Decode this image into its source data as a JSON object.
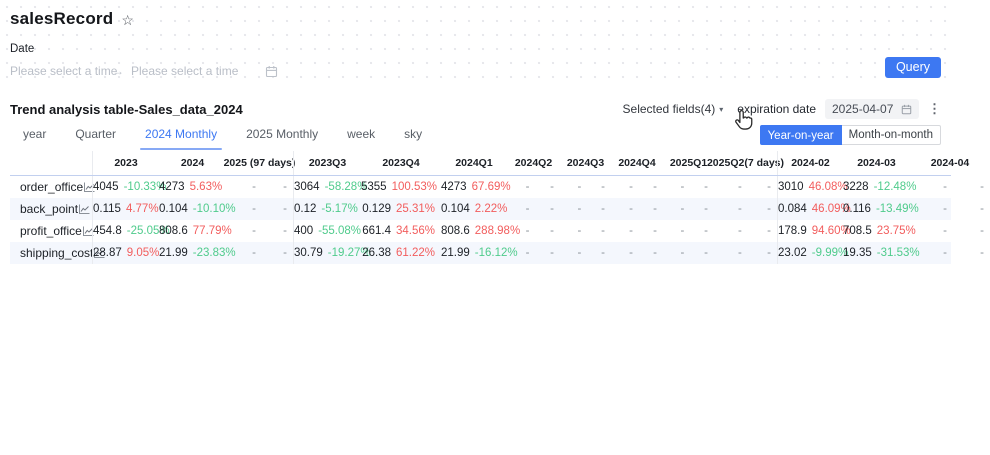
{
  "page": {
    "title": "salesRecord"
  },
  "filters": {
    "date_label": "Date",
    "start_placeholder": "Please select a time",
    "end_placeholder": "Please select a time",
    "query_label": "Query"
  },
  "panel": {
    "title": "Trend analysis table-Sales_data_2024",
    "selected_fields_label": "Selected fields(4)",
    "expiration_label": "expiration date",
    "expiration_value": "2025-04-07",
    "tabs": [
      {
        "label": "year",
        "active": false
      },
      {
        "label": "Quarter",
        "active": false
      },
      {
        "label": "2024 Monthly",
        "active": true
      },
      {
        "label": "2025 Monthly",
        "active": false
      },
      {
        "label": "week",
        "active": false
      },
      {
        "label": "sky",
        "active": false
      }
    ],
    "compare_modes": [
      {
        "label": "Year-on-year",
        "active": true
      },
      {
        "label": "Month-on-month",
        "active": false
      }
    ]
  },
  "colors": {
    "accent": "#3d78f2",
    "increase_pct": "#f25d5d",
    "decrease_pct": "#4fcb8c"
  },
  "table": {
    "label_col_width": 82,
    "columns": [
      {
        "label": "2023",
        "width": 67,
        "sep": true
      },
      {
        "label": "2024",
        "width": 67
      },
      {
        "label": "2025 (97 days)",
        "width": 67
      },
      {
        "label": "2023Q3",
        "width": 68,
        "sep": true
      },
      {
        "label": "2023Q4",
        "width": 80
      },
      {
        "label": "2024Q1",
        "width": 66
      },
      {
        "label": "2024Q2",
        "width": 53
      },
      {
        "label": "2024Q3",
        "width": 51
      },
      {
        "label": "2024Q4",
        "width": 52
      },
      {
        "label": "2025Q1",
        "width": 51
      },
      {
        "label": "2025Q2(7 days)",
        "width": 63
      },
      {
        "label": "2024-02",
        "width": 66,
        "sep": true
      },
      {
        "label": "2024-03",
        "width": 67
      },
      {
        "label": "2024-04",
        "width": 80
      }
    ],
    "rows": [
      {
        "label": "order_office",
        "cells": [
          [
            "4045",
            "-10.33%",
            "d"
          ],
          [
            "4273",
            "5.63%",
            "u"
          ],
          [
            "-",
            "-",
            ""
          ],
          [
            "3064",
            "-58.28%",
            "d"
          ],
          [
            "5355",
            "100.53%",
            "u"
          ],
          [
            "4273",
            "67.69%",
            "u"
          ],
          [
            "-",
            "-",
            ""
          ],
          [
            "-",
            "-",
            ""
          ],
          [
            "-",
            "-",
            ""
          ],
          [
            "-",
            "-",
            ""
          ],
          [
            "-",
            "-",
            ""
          ],
          [
            "3010",
            "46.08%",
            "u"
          ],
          [
            "3228",
            "-12.48%",
            "d"
          ],
          [
            "-",
            "-",
            ""
          ]
        ]
      },
      {
        "label": "back_point",
        "cells": [
          [
            "0.115",
            "4.77%",
            "u"
          ],
          [
            "0.104",
            "-10.10%",
            "d"
          ],
          [
            "-",
            "-",
            ""
          ],
          [
            "0.12",
            "-5.17%",
            "d"
          ],
          [
            "0.129",
            "25.31%",
            "u"
          ],
          [
            "0.104",
            "2.22%",
            "u"
          ],
          [
            "-",
            "-",
            ""
          ],
          [
            "-",
            "-",
            ""
          ],
          [
            "-",
            "-",
            ""
          ],
          [
            "-",
            "-",
            ""
          ],
          [
            "-",
            "-",
            ""
          ],
          [
            "0.084",
            "46.09%",
            "u"
          ],
          [
            "0.116",
            "-13.49%",
            "d"
          ],
          [
            "-",
            "-",
            ""
          ]
        ]
      },
      {
        "label": "profit_office",
        "cells": [
          [
            "454.8",
            "-25.05%",
            "d"
          ],
          [
            "808.6",
            "77.79%",
            "u"
          ],
          [
            "-",
            "-",
            ""
          ],
          [
            "400",
            "-55.08%",
            "d"
          ],
          [
            "661.4",
            "34.56%",
            "u"
          ],
          [
            "808.6",
            "288.98%",
            "u"
          ],
          [
            "-",
            "-",
            ""
          ],
          [
            "-",
            "-",
            ""
          ],
          [
            "-",
            "-",
            ""
          ],
          [
            "-",
            "-",
            ""
          ],
          [
            "-",
            "-",
            ""
          ],
          [
            "178.9",
            "94.60%",
            "u"
          ],
          [
            "708.5",
            "23.75%",
            "u"
          ],
          [
            "-",
            "-",
            ""
          ]
        ]
      },
      {
        "label": "shipping_cost",
        "cells": [
          [
            "28.87",
            "9.05%",
            "u"
          ],
          [
            "21.99",
            "-23.83%",
            "d"
          ],
          [
            "-",
            "-",
            ""
          ],
          [
            "30.79",
            "-19.27%",
            "d"
          ],
          [
            "26.38",
            "61.22%",
            "u"
          ],
          [
            "21.99",
            "-16.12%",
            "d"
          ],
          [
            "-",
            "-",
            ""
          ],
          [
            "-",
            "-",
            ""
          ],
          [
            "-",
            "-",
            ""
          ],
          [
            "-",
            "-",
            ""
          ],
          [
            "-",
            "-",
            ""
          ],
          [
            "23.02",
            "-9.99%",
            "d"
          ],
          [
            "19.35",
            "-31.53%",
            "d"
          ],
          [
            "-",
            "-",
            ""
          ]
        ]
      }
    ]
  }
}
